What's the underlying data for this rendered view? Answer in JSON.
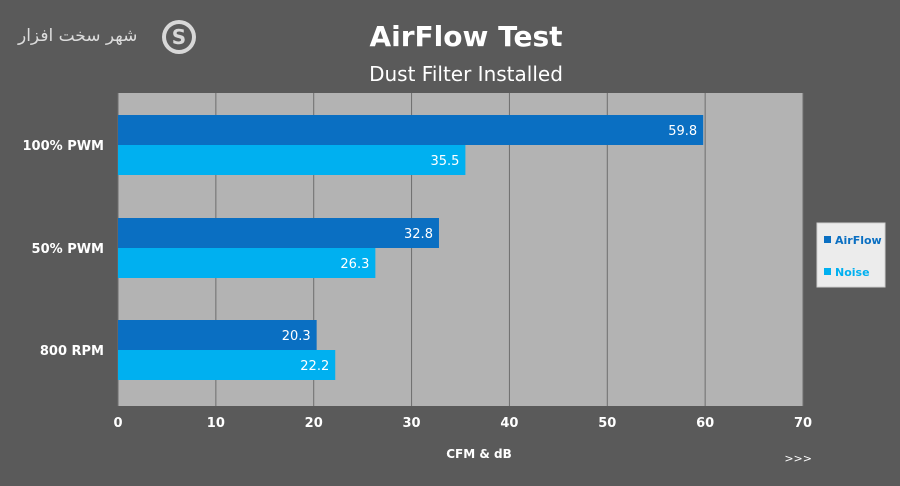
{
  "brand": {
    "text": "شهر سخت افزار",
    "mark": "S"
  },
  "chart_data": {
    "type": "bar",
    "orientation": "horizontal",
    "title": "AirFlow Test",
    "subtitle": "Dust Filter Installed",
    "categories": [
      "100% PWM",
      "50% PWM",
      "800 RPM"
    ],
    "series": [
      {
        "name": "AirFlow",
        "color": "#0a6fc2",
        "values": [
          59.8,
          32.8,
          20.3
        ]
      },
      {
        "name": "Noise",
        "color": "#00b0f0",
        "values": [
          35.5,
          26.3,
          22.2
        ]
      }
    ],
    "xlabel": "CFM & dB",
    "xlim": [
      0,
      70
    ],
    "xticks": [
      0,
      10,
      20,
      30,
      40,
      50,
      60,
      70
    ],
    "grid": true,
    "legend": "right",
    "note": ">>>",
    "colors": {
      "background": "#5a5a5a",
      "plot_area": "#b3b3b3",
      "grid": "#6e6e6e",
      "text": "#ffffff",
      "legend_bg": "#ececec"
    }
  }
}
